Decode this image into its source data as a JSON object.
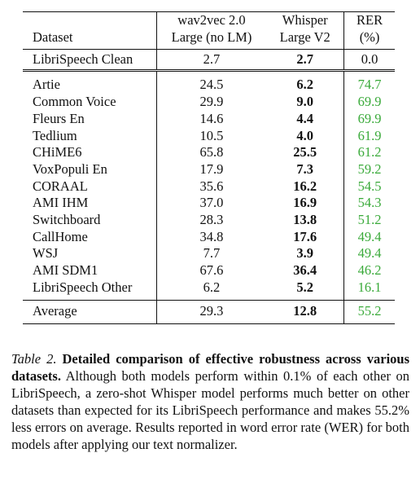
{
  "table": {
    "header": [
      "Dataset",
      "wav2vec 2.0 Large (no LM)",
      "Whisper Large V2",
      "RER (%)"
    ],
    "header_lines": [
      [
        "Dataset"
      ],
      [
        "wav2vec 2.0",
        "Large (no LM)"
      ],
      [
        "Whisper",
        "Large V2"
      ],
      [
        "RER",
        "(%)"
      ]
    ],
    "reference_row": [
      "LibriSpeech Clean",
      "2.7",
      "2.7",
      "0.0"
    ],
    "rows": [
      [
        "Artie",
        "24.5",
        "6.2",
        "74.7"
      ],
      [
        "Common Voice",
        "29.9",
        "9.0",
        "69.9"
      ],
      [
        "Fleurs En",
        "14.6",
        "4.4",
        "69.9"
      ],
      [
        "Tedlium",
        "10.5",
        "4.0",
        "61.9"
      ],
      [
        "CHiME6",
        "65.8",
        "25.5",
        "61.2"
      ],
      [
        "VoxPopuli En",
        "17.9",
        "7.3",
        "59.2"
      ],
      [
        "CORAAL",
        "35.6",
        "16.2",
        "54.5"
      ],
      [
        "AMI IHM",
        "37.0",
        "16.9",
        "54.3"
      ],
      [
        "Switchboard",
        "28.3",
        "13.8",
        "51.2"
      ],
      [
        "CallHome",
        "34.8",
        "17.6",
        "49.4"
      ],
      [
        "WSJ",
        "7.7",
        "3.9",
        "49.4"
      ],
      [
        "AMI SDM1",
        "67.6",
        "36.4",
        "46.2"
      ],
      [
        "LibriSpeech Other",
        "6.2",
        "5.2",
        "16.1"
      ]
    ],
    "average_row": [
      "Average",
      "29.3",
      "12.8",
      "55.2"
    ]
  },
  "caption": {
    "label": "Table 2.",
    "title": "Detailed comparison of effective robustness across various datasets.",
    "text": "Although both models perform within 0.1% of each other on LibriSpeech, a zero-shot Whisper model performs much better on other datasets than expected for its LibriSpeech performance and makes 55.2% less errors on average. Results reported in word error rate (WER) for both models after applying our text normalizer."
  }
}
